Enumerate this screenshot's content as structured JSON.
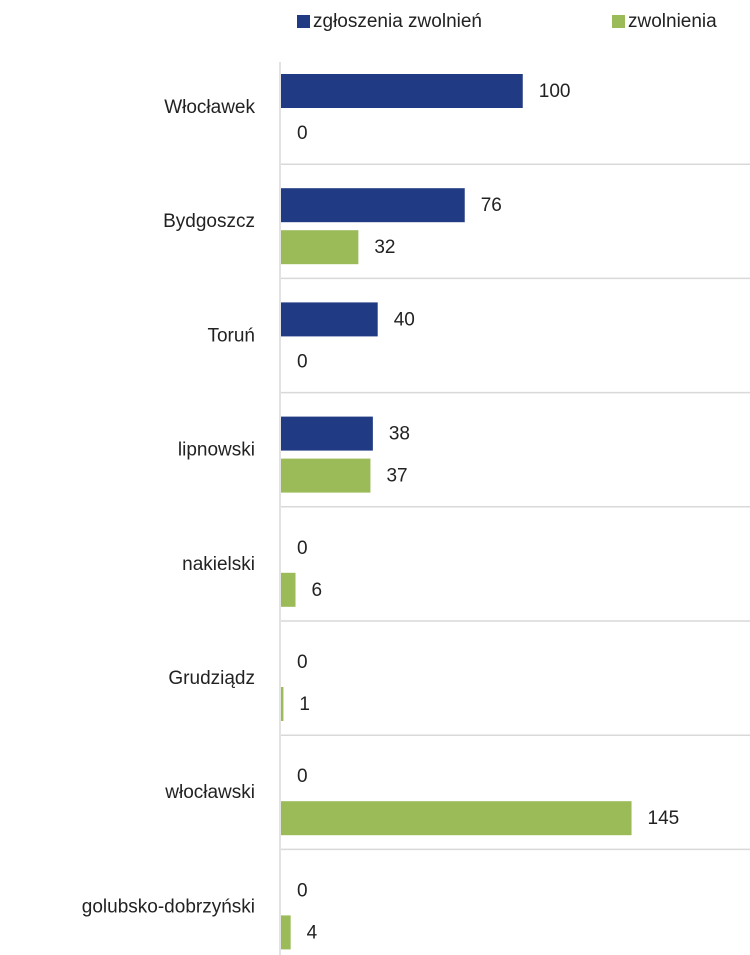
{
  "chart_data": {
    "type": "bar",
    "orientation": "horizontal",
    "categories": [
      "Włocławek",
      "Bydgoszcz",
      "Toruń",
      "lipnowski",
      "nakielski",
      "Grudziądz",
      "włocławski",
      "golubsko-dobrzyński"
    ],
    "series": [
      {
        "name": "zgłoszenia zwolnień",
        "color": "#203a84",
        "values": [
          100,
          76,
          40,
          38,
          0,
          0,
          0,
          0
        ]
      },
      {
        "name": "zwolnienia",
        "color": "#9bbb59",
        "values": [
          0,
          32,
          0,
          37,
          6,
          1,
          145,
          4
        ]
      }
    ],
    "xlim": [
      0,
      194
    ],
    "legend": "top"
  }
}
